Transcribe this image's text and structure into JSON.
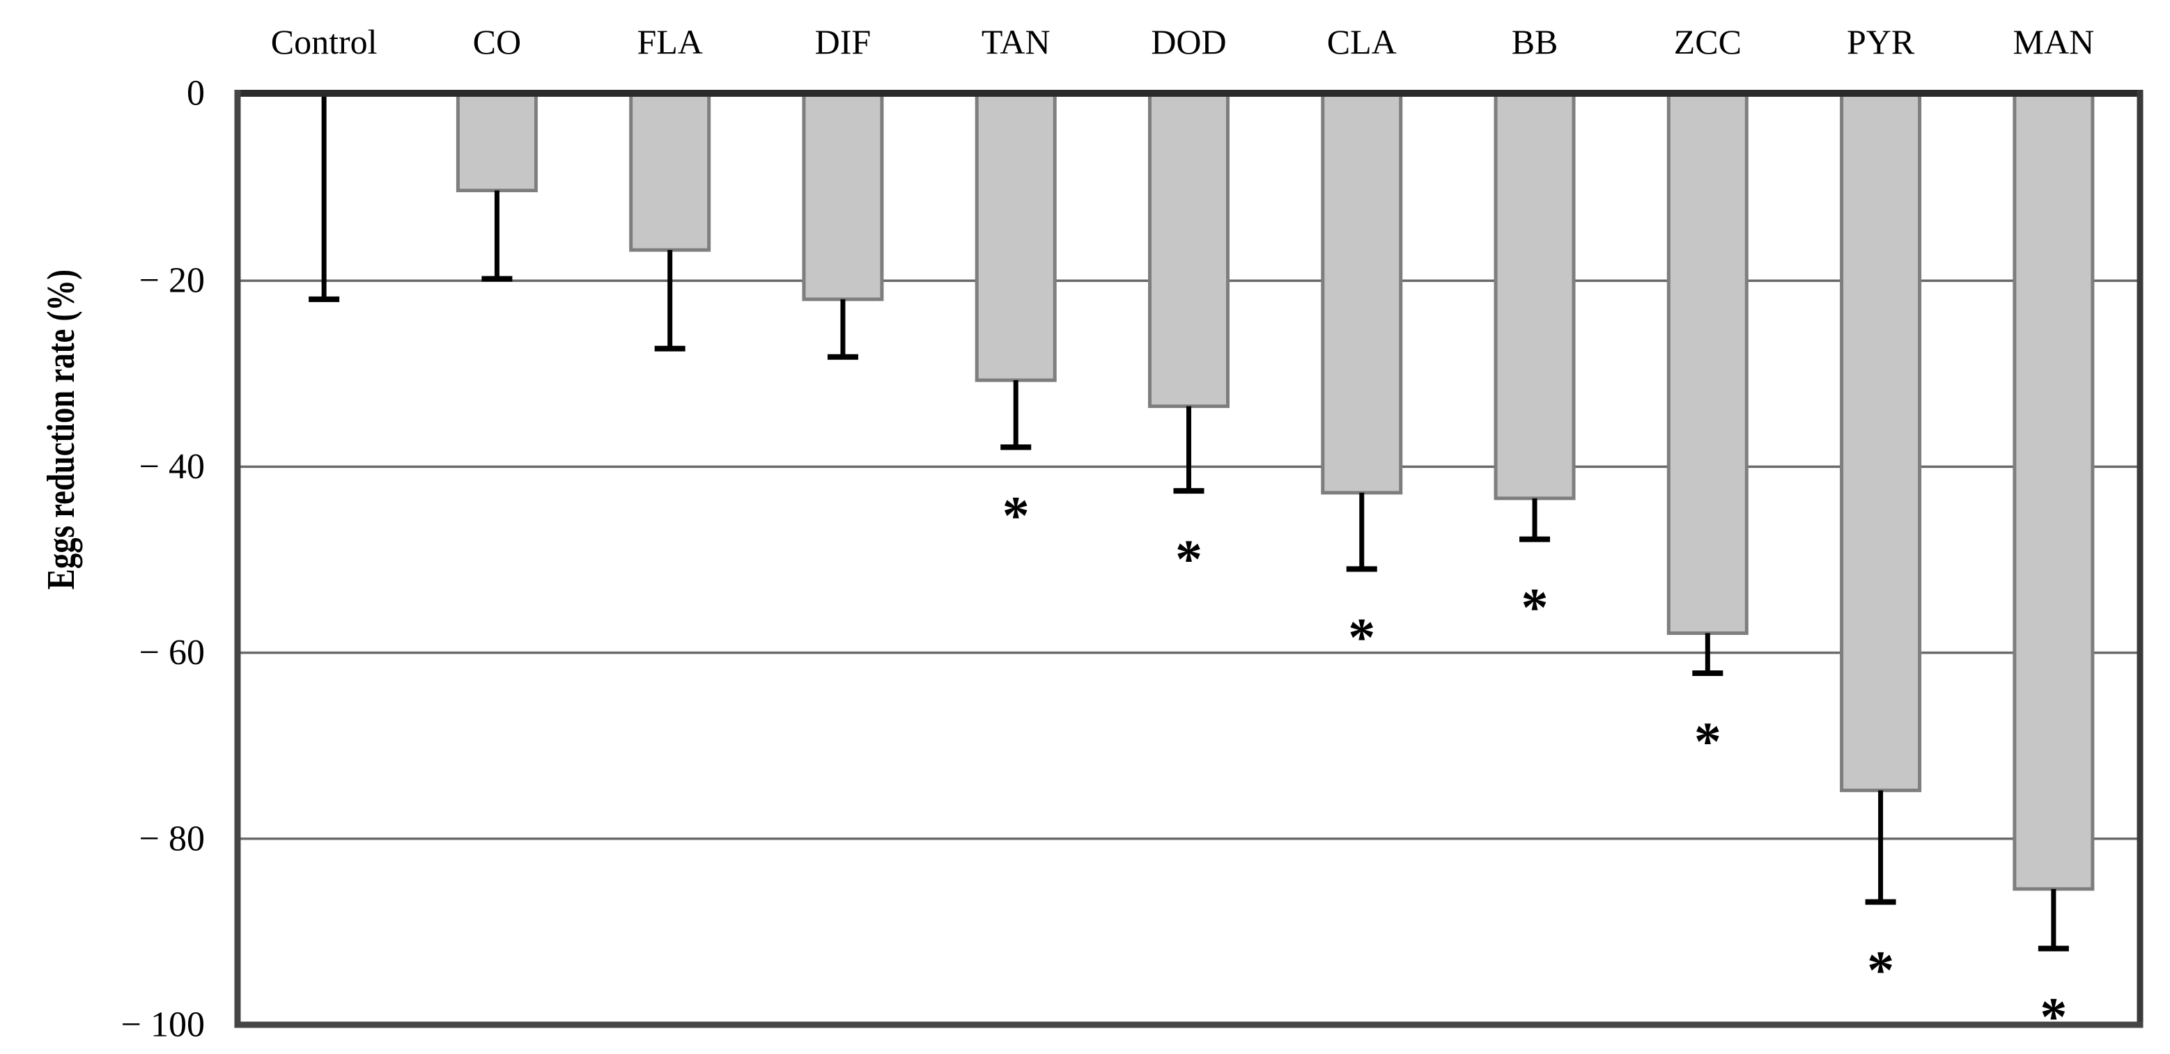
{
  "figure": {
    "ylabel": "Eggs reduction rate (%)",
    "significance_symbol": "*"
  },
  "chart_data": {
    "type": "bar",
    "orientation": "vertical",
    "title": "",
    "xlabel": "",
    "ylabel": "Eggs reduction rate (%)",
    "categories": [
      "Control",
      "CO",
      "FLA",
      "DIF",
      "TAN",
      "DOD",
      "CLA",
      "BB",
      "ZCC",
      "PYR",
      "MAN"
    ],
    "values": [
      0,
      -10.3,
      -16.7,
      -22.0,
      -30.7,
      -33.5,
      -42.8,
      -43.4,
      -57.9,
      -74.8,
      -85.4
    ],
    "error_minus": [
      22.0,
      9.5,
      10.6,
      6.2,
      7.2,
      9.1,
      8.2,
      4.4,
      4.3,
      12.0,
      6.4
    ],
    "significant": [
      false,
      false,
      false,
      false,
      true,
      true,
      true,
      true,
      true,
      true,
      true
    ],
    "significance_symbol": "*",
    "ylim": [
      -100,
      0
    ],
    "yticks": [
      0,
      -20,
      -40,
      -60,
      -80,
      -100
    ],
    "ytick_labels": [
      "0",
      "− 20",
      "− 40",
      "− 60",
      "− 80",
      "− 100"
    ],
    "grid": true,
    "legend": "none",
    "category_labels_position": "top",
    "colors": {
      "bar_fill": "#c6c6c6",
      "bar_border": "#7e7e7e",
      "gridline": "#6a6a6a",
      "axis_border": "#454545",
      "top_axis": "#2b2b2b",
      "right_border": "#3a3a3a",
      "error_bar": "#000000",
      "text": "#000000",
      "background": "#ffffff"
    }
  }
}
